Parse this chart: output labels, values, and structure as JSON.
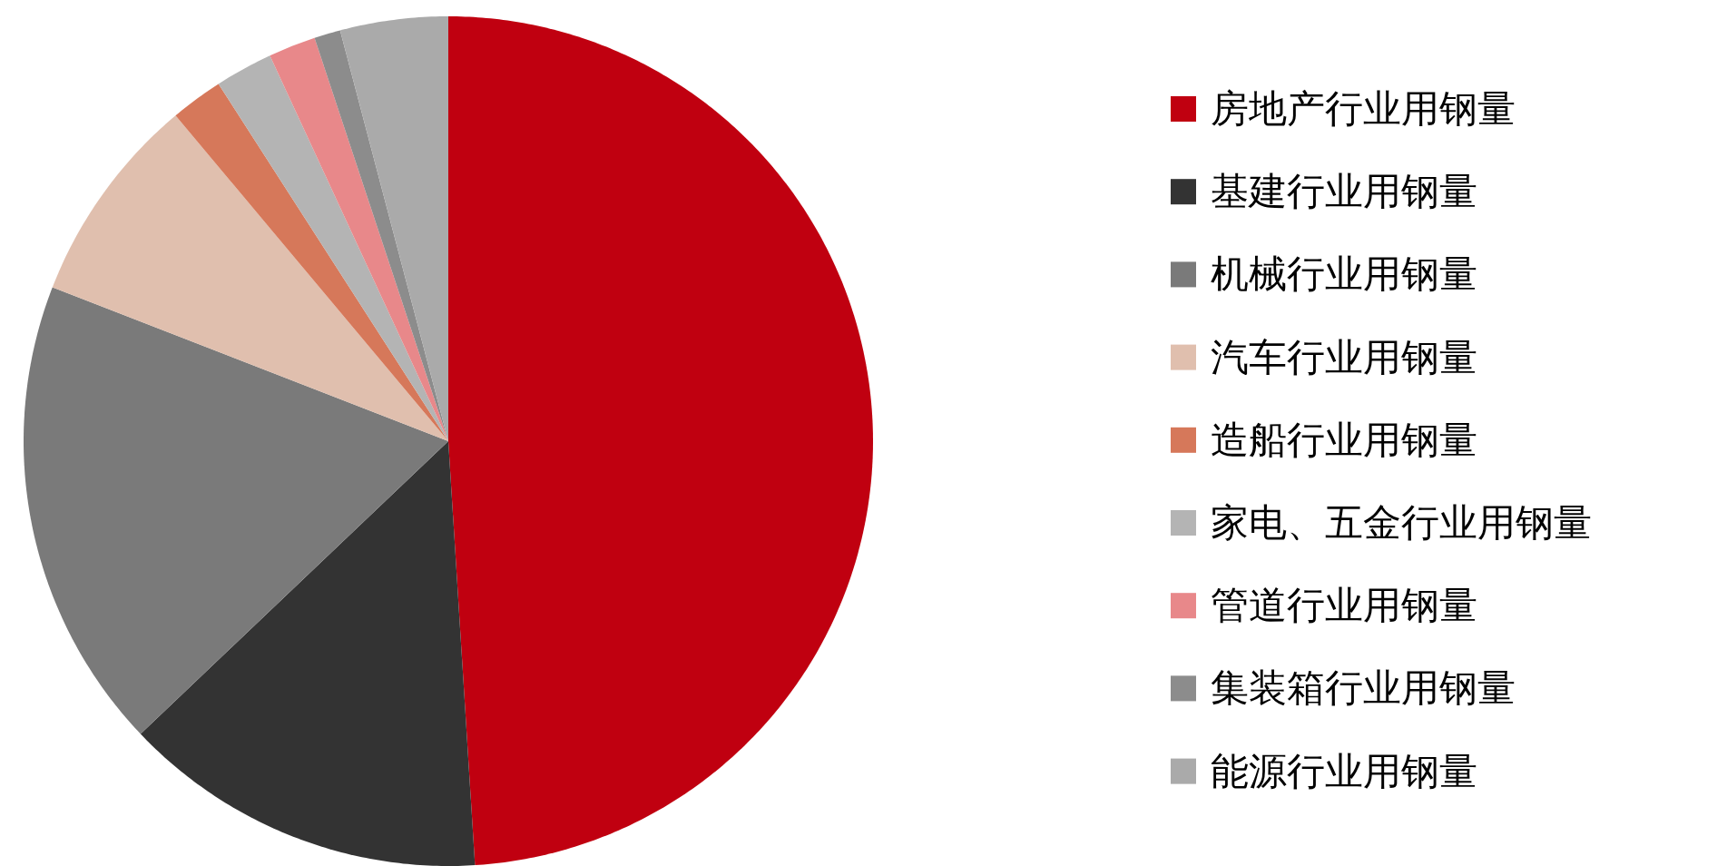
{
  "chart_data": {
    "type": "pie",
    "legend": "right",
    "categories": [
      "房地产行业用钢量",
      "基建行业用钢量",
      "机械行业用钢量",
      "汽车行业用钢量",
      "造船行业用钢量",
      "家电、五金行业用钢量",
      "管道行业用钢量",
      "集装箱行业用钢量",
      "能源行业用钢量"
    ],
    "values": [
      49,
      13.9,
      18,
      8,
      2,
      2.2,
      1.8,
      1,
      4.1
    ],
    "colors": [
      "#c00010",
      "#333333",
      "#7a7a7a",
      "#e0bfae",
      "#d6785a",
      "#b4b4b4",
      "#e8888a",
      "#8c8c8c",
      "#aaaaaa"
    ]
  }
}
